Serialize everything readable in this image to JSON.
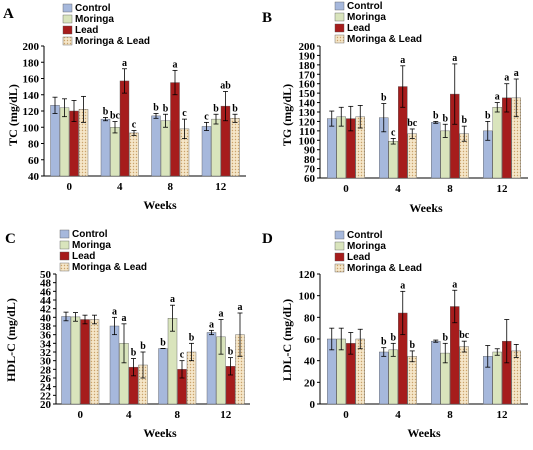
{
  "colors": {
    "Control": "#a6b8dc",
    "Moringa": "#d9e4bc",
    "Lead": "#a61c1c",
    "Moringa & Lead": "#f5e6c8",
    "pattern_dot": "#c9a26a",
    "error": "#000000"
  },
  "chart_data": [
    {
      "type": "bar",
      "panel": "A",
      "ylabel": "TC (mg/dL)",
      "xlabel": "Weeks",
      "categories": [
        "0",
        "4",
        "8",
        "12"
      ],
      "ylim": [
        40,
        200
      ],
      "yticks": [
        40,
        60,
        80,
        100,
        120,
        140,
        160,
        180,
        200
      ],
      "legend": [
        "Control",
        "Moringa",
        "Lead",
        "Moringa & Lead"
      ],
      "series": [
        {
          "name": "Control",
          "values": [
            127,
            110,
            114,
            101
          ],
          "errors": [
            10,
            2,
            3,
            5
          ],
          "sig": [
            "",
            "b",
            "b",
            "c"
          ]
        },
        {
          "name": "Moringa",
          "values": [
            124,
            100,
            108,
            110
          ],
          "errors": [
            11,
            7,
            8,
            6
          ],
          "sig": [
            "",
            "bc",
            "b",
            "b"
          ]
        },
        {
          "name": "Lead",
          "values": [
            120,
            157,
            155,
            126
          ],
          "errors": [
            13,
            15,
            15,
            18
          ],
          "sig": [
            "",
            "a",
            "a",
            "ab"
          ]
        },
        {
          "name": "Moringa & Lead",
          "values": [
            122,
            93,
            98,
            111
          ],
          "errors": [
            16,
            3,
            12,
            5
          ],
          "sig": [
            "",
            "c",
            "c",
            "b"
          ]
        }
      ]
    },
    {
      "type": "bar",
      "panel": "B",
      "ylabel": "TG (mg/dL)",
      "xlabel": "Weeks",
      "categories": [
        "0",
        "4",
        "8",
        "12"
      ],
      "ylim": [
        60,
        200
      ],
      "yticks": [
        60,
        70,
        80,
        90,
        100,
        110,
        120,
        130,
        140,
        150,
        160,
        170,
        180,
        190,
        200
      ],
      "legend": [
        "Control",
        "Moringa",
        "Lead",
        "Moringa & Lead"
      ],
      "series": [
        {
          "name": "Control",
          "values": [
            123,
            124,
            119,
            110
          ],
          "errors": [
            8,
            15,
            1,
            10
          ],
          "sig": [
            "",
            "b",
            "b",
            "b"
          ]
        },
        {
          "name": "Moringa",
          "values": [
            125,
            99,
            110,
            135
          ],
          "errors": [
            10,
            3,
            7,
            5
          ],
          "sig": [
            "",
            "c",
            "b",
            "a"
          ]
        },
        {
          "name": "Lead",
          "values": [
            123,
            157,
            149,
            145
          ],
          "errors": [
            13,
            22,
            32,
            15
          ],
          "sig": [
            "",
            "a",
            "a",
            "a"
          ]
        },
        {
          "name": "Moringa & Lead",
          "values": [
            125,
            107,
            107,
            145
          ],
          "errors": [
            12,
            5,
            8,
            20
          ],
          "sig": [
            "",
            "bc",
            "b",
            "a"
          ]
        }
      ]
    },
    {
      "type": "bar",
      "panel": "C",
      "ylabel": "HDL-C (mg/dL)",
      "xlabel": "Weeks",
      "categories": [
        "0",
        "4",
        "8",
        "12"
      ],
      "ylim": [
        20,
        50
      ],
      "yticks": [
        20,
        22,
        24,
        26,
        28,
        30,
        32,
        34,
        36,
        38,
        40,
        42,
        44,
        46,
        48,
        50
      ],
      "legend": [
        "Control",
        "Moringa",
        "Lead",
        "Moringa & Lead"
      ],
      "series": [
        {
          "name": "Control",
          "values": [
            40.2,
            38,
            32.8,
            36.5
          ],
          "errors": [
            1,
            2,
            0,
            0.5
          ],
          "sig": [
            "",
            "a",
            "b",
            "a"
          ]
        },
        {
          "name": "Moringa",
          "values": [
            40.1,
            34,
            39.8,
            35.5
          ],
          "errors": [
            1,
            4.5,
            3,
            4
          ],
          "sig": [
            "",
            "a",
            "a",
            "a"
          ]
        },
        {
          "name": "Lead",
          "values": [
            39.5,
            28.5,
            28,
            28.7
          ],
          "errors": [
            1,
            2,
            2,
            2
          ],
          "sig": [
            "",
            "b",
            "c",
            "b"
          ]
        },
        {
          "name": "Moringa & Lead",
          "values": [
            39.5,
            29,
            32,
            36
          ],
          "errors": [
            1,
            3,
            2,
            5
          ],
          "sig": [
            "",
            "b",
            "b",
            "a"
          ]
        }
      ]
    },
    {
      "type": "bar",
      "panel": "D",
      "ylabel": "LDL-C (mg/dL)",
      "xlabel": "Weeks",
      "categories": [
        "0",
        "4",
        "8",
        "12"
      ],
      "ylim": [
        0,
        120
      ],
      "yticks": [
        0,
        20,
        40,
        60,
        80,
        100,
        120
      ],
      "legend": [
        "Control",
        "Moringa",
        "Lead",
        "Moringa & Lead"
      ],
      "series": [
        {
          "name": "Control",
          "values": [
            60,
            48,
            58,
            44
          ],
          "errors": [
            10,
            4,
            1,
            10
          ],
          "sig": [
            "",
            "b",
            "",
            ""
          ]
        },
        {
          "name": "Moringa",
          "values": [
            60,
            50,
            47,
            48
          ],
          "errors": [
            10,
            6,
            9,
            3
          ],
          "sig": [
            "",
            "b",
            "b",
            ""
          ]
        },
        {
          "name": "Lead",
          "values": [
            56,
            84,
            90,
            58
          ],
          "errors": [
            10,
            20,
            15,
            20
          ],
          "sig": [
            "",
            "a",
            "a",
            ""
          ]
        },
        {
          "name": "Moringa & Lead",
          "values": [
            60,
            44,
            53,
            49
          ],
          "errors": [
            9,
            5,
            5,
            6
          ],
          "sig": [
            "",
            "b",
            "bc",
            ""
          ]
        }
      ]
    }
  ]
}
